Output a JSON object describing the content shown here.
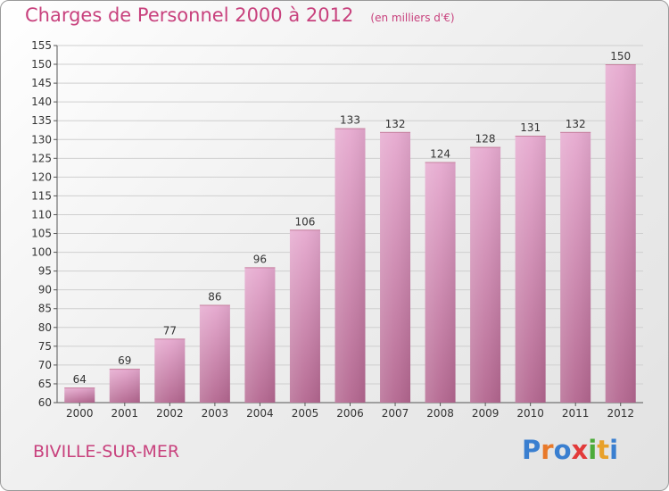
{
  "header": {
    "title": "Charges de Personnel 2000 à 2012",
    "subtitle": "(en milliers d'€)"
  },
  "footer": {
    "commune": "BIVILLE-SUR-MER",
    "brand_letters": [
      {
        "char": "P",
        "color": "#3a7fd0"
      },
      {
        "char": "r",
        "color": "#e8792a"
      },
      {
        "char": "o",
        "color": "#3a7fd0"
      },
      {
        "char": "x",
        "color": "#e23a3a"
      },
      {
        "char": "i",
        "color": "#4cab3a"
      },
      {
        "char": "t",
        "color": "#e8a12a"
      },
      {
        "char": "i",
        "color": "#3a7fd0"
      }
    ]
  },
  "colors": {
    "bar_top": "#e6a9cf",
    "bar_bottom": "#b3668f",
    "accent": "#c8417d",
    "grid": "#cfcfcf"
  },
  "chart_data": {
    "type": "bar",
    "categories": [
      "2000",
      "2001",
      "2002",
      "2003",
      "2004",
      "2005",
      "2006",
      "2007",
      "2008",
      "2009",
      "2010",
      "2011",
      "2012"
    ],
    "values": [
      64,
      69,
      77,
      86,
      96,
      106,
      133,
      132,
      124,
      128,
      131,
      132,
      150
    ],
    "ylim": [
      60,
      155
    ],
    "yticks": [
      60,
      65,
      70,
      75,
      80,
      85,
      90,
      95,
      100,
      105,
      110,
      115,
      120,
      125,
      130,
      135,
      140,
      145,
      150,
      155
    ],
    "grid": true,
    "legend": "none"
  }
}
